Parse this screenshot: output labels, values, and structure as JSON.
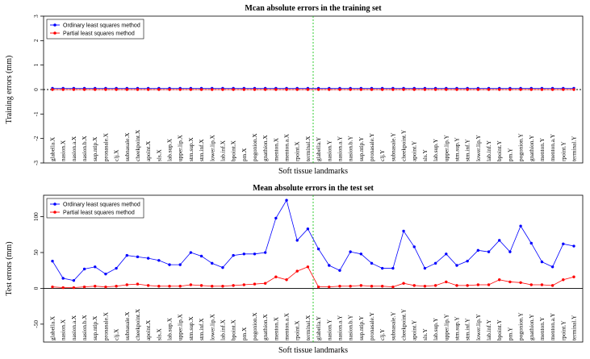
{
  "colors": {
    "ols": "#0000ff",
    "pls": "#ff0000",
    "divider": "#00c000",
    "zero_line": "#000000"
  },
  "chart_data": [
    {
      "type": "line",
      "title": "Mcan absolute errors in the training set",
      "xlabel": "Soft tissue landmarks",
      "ylabel": "Training errors (mm)",
      "ylim": [
        -3,
        3
      ],
      "yticks": [
        -3,
        -2,
        -1,
        0,
        1,
        2,
        3
      ],
      "legend": {
        "position": "top-left",
        "entries": [
          "Ordinary least squares method",
          "Partial least squares method"
        ]
      },
      "categories": [
        "glabella.X",
        "nasion.X",
        "nasion.a.X",
        "nasion.b.X",
        "sup.ntip.X",
        "pronasale.X",
        "clj.X",
        "subnasale.X",
        "cheekpoint.X",
        "apoint.X",
        "sls.X",
        "lab.sup.X",
        "upper.lip.X",
        "stm.sup.X",
        "stm.inf.X",
        "lower.lip.X",
        "lab.inf.X",
        "bpoint.X",
        "pm.X",
        "pogonion.X",
        "gnathion.X",
        "menton.X",
        "menton.a.X",
        "rpoint.X",
        "terminal.X",
        "glabella.Y",
        "nasion.Y",
        "nasion.a.Y",
        "nasion.b.Y",
        "sup.ntip.Y",
        "pronasale.Y",
        "clj.Y",
        "subnasale.Y",
        "cheekpoint.Y",
        "apoint.Y",
        "sls.Y",
        "lab.sup.Y",
        "upper.lip.Y",
        "stm.sup.Y",
        "stm.inf.Y",
        "lower.lip.Y",
        "lab.inf.Y",
        "bpoint.Y",
        "pm.Y",
        "pogonion.Y",
        "gnathion.Y",
        "menton.Y",
        "menton.a.Y",
        "rpoint.Y",
        "terminal.Y"
      ],
      "series": [
        {
          "name": "Ordinary least squares method",
          "values": [
            0.05,
            0.05,
            0.05,
            0.05,
            0.05,
            0.05,
            0.05,
            0.05,
            0.05,
            0.05,
            0.05,
            0.05,
            0.05,
            0.05,
            0.05,
            0.05,
            0.05,
            0.05,
            0.05,
            0.05,
            0.05,
            0.05,
            0.05,
            0.05,
            0.05,
            0.05,
            0.05,
            0.05,
            0.05,
            0.05,
            0.05,
            0.05,
            0.05,
            0.05,
            0.05,
            0.05,
            0.05,
            0.05,
            0.05,
            0.05,
            0.05,
            0.05,
            0.05,
            0.05,
            0.05,
            0.05,
            0.05,
            0.05,
            0.05,
            0.05
          ]
        },
        {
          "name": "Partial least squares method",
          "values": [
            0,
            0,
            0,
            0,
            0,
            0,
            0,
            0,
            0,
            0,
            0,
            0,
            0,
            0,
            0,
            0,
            0,
            0,
            0,
            0,
            0,
            0,
            0,
            0,
            0,
            0,
            0,
            0,
            0,
            0,
            0,
            0,
            0,
            0,
            0,
            0,
            0,
            0,
            0,
            0,
            0,
            0,
            0,
            0,
            0,
            0,
            0,
            0,
            0,
            0
          ]
        }
      ]
    },
    {
      "type": "line",
      "title": "Mean absolute errors in the test set",
      "xlabel": "Soft tissue landmarks",
      "ylabel": "Test errors (mm)",
      "ylim": [
        -75,
        130
      ],
      "yticks": [
        -50,
        0,
        50,
        100
      ],
      "legend": {
        "position": "top-left",
        "entries": [
          "Ordinary least squares method",
          "Partial least squares method"
        ]
      },
      "categories": [
        "glabella.X",
        "nasion.X",
        "nasion.a.X",
        "nasion.b.X",
        "sup.ntip.X",
        "pronasale.X",
        "clj.X",
        "subnasale.X",
        "cheekpoint.X",
        "apoint.X",
        "sls.X",
        "lab.sup.X",
        "upper.lip.X",
        "stm.sup.X",
        "stm.inf.X",
        "lower.lip.X",
        "lab.inf.X",
        "bpoint.X",
        "pm.X",
        "pogonion.X",
        "gnathion.X",
        "menton.X",
        "menton.a.X",
        "rpoint.X",
        "terminal.X",
        "glabella.Y",
        "nasion.Y",
        "nasion.a.Y",
        "nasion.b.Y",
        "sup.ntip.Y",
        "pronasale.Y",
        "clj.Y",
        "subnasale.Y",
        "cheekpoint.Y",
        "apoint.Y",
        "sls.Y",
        "lab.sup.Y",
        "upper.lip.Y",
        "stm.sup.Y",
        "stm.inf.Y",
        "lower.lip.Y",
        "lab.inf.Y",
        "bpoint.Y",
        "pm.Y",
        "pogonion.Y",
        "gnathion.Y",
        "menton.Y",
        "menton.a.Y",
        "rpoint.Y",
        "terminal.Y"
      ],
      "series": [
        {
          "name": "Ordinary least squares method",
          "values": [
            38,
            14,
            11,
            27,
            30,
            20,
            28,
            46,
            44,
            42,
            39,
            33,
            33,
            50,
            45,
            35,
            29,
            46,
            48,
            48,
            50,
            98,
            123,
            67,
            83,
            55,
            32,
            25,
            51,
            48,
            35,
            28,
            28,
            80,
            58,
            28,
            35,
            48,
            32,
            38,
            53,
            51,
            67,
            51,
            87,
            63,
            37,
            30,
            62,
            59
          ]
        },
        {
          "name": "Partial least squares method",
          "values": [
            2,
            1,
            1,
            2,
            3,
            2,
            3,
            5,
            6,
            4,
            3,
            3,
            3,
            5,
            4,
            3,
            3,
            4,
            5,
            6,
            7,
            16,
            12,
            24,
            30,
            2,
            2,
            3,
            3,
            4,
            3,
            3,
            2,
            7,
            4,
            3,
            4,
            9,
            4,
            4,
            5,
            5,
            12,
            9,
            8,
            5,
            5,
            4,
            12,
            16
          ]
        }
      ]
    }
  ]
}
